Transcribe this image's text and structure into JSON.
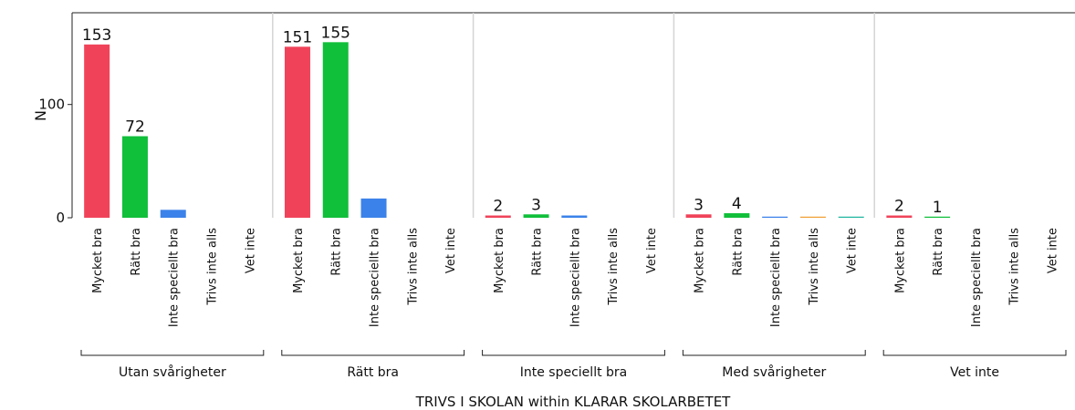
{
  "chart_data": {
    "type": "bar",
    "ylabel": "N",
    "xlabel": "TRIVS I SKOLAN within KLARAR SKOLARBETET",
    "groups": [
      "Utan svårigheter",
      "Rätt bra",
      "Inte speciellt bra",
      "Med svårigheter",
      "Vet inte"
    ],
    "series": [
      {
        "name": "Mycket bra",
        "color": "#f0435a",
        "values": [
          153,
          151,
          2,
          3,
          2
        ],
        "show_value_labels": true
      },
      {
        "name": "Rätt bra",
        "color": "#10bf3a",
        "values": [
          72,
          155,
          3,
          4,
          1
        ],
        "show_value_labels": true
      },
      {
        "name": "Inte speciellt bra",
        "color": "#3b82ea",
        "values": [
          7,
          17,
          2,
          1,
          0
        ],
        "show_value_labels": false
      },
      {
        "name": "Trivs inte alls",
        "color": "#f0a035",
        "values": [
          0,
          0,
          0,
          1,
          0
        ],
        "show_value_labels": false
      },
      {
        "name": "Vet inte",
        "color": "#20b5a0",
        "values": [
          0,
          0,
          0,
          1,
          0
        ],
        "show_value_labels": false
      }
    ],
    "ylim": [
      0,
      181
    ],
    "yticks": [
      0,
      100
    ]
  }
}
